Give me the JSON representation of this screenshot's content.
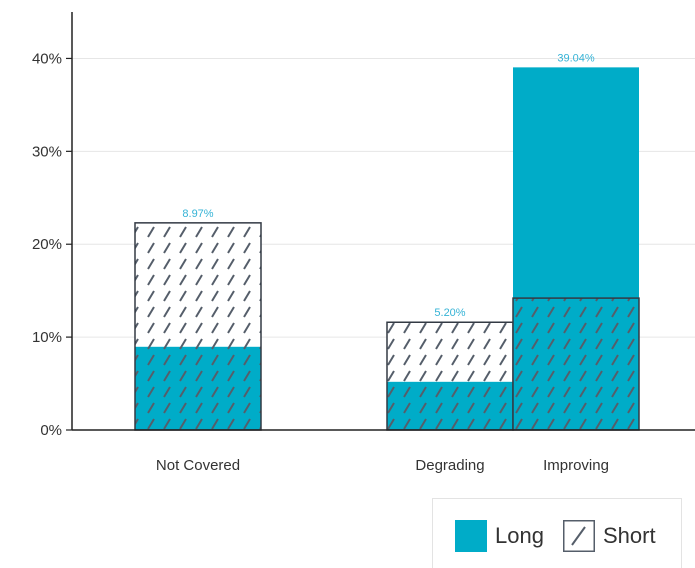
{
  "chart_data": {
    "type": "bar",
    "title": "",
    "categories": [
      "Not Covered",
      "Degrading",
      "Improving"
    ],
    "series": [
      {
        "name": "Long",
        "values": [
          8.97,
          5.2,
          39.04
        ]
      },
      {
        "name": "Short",
        "values": [
          22.3,
          11.6,
          14.2
        ]
      }
    ],
    "data_labels": [
      "8.97%",
      "5.20%",
      "39.04%"
    ],
    "y_ticks": [
      "0%",
      "10%",
      "20%",
      "30%",
      "40%"
    ],
    "ylim": [
      0,
      45
    ],
    "grid": true,
    "legend_position": "bottom-right",
    "colors": {
      "long": "#00acc8",
      "short_fill": "#ffffff",
      "hatch": "#555e6a",
      "data_label": "#35b3d6",
      "grid": "#e6e6e6",
      "axis": "#222222"
    }
  },
  "legend": {
    "long_label": "Long",
    "short_label": "Short"
  }
}
